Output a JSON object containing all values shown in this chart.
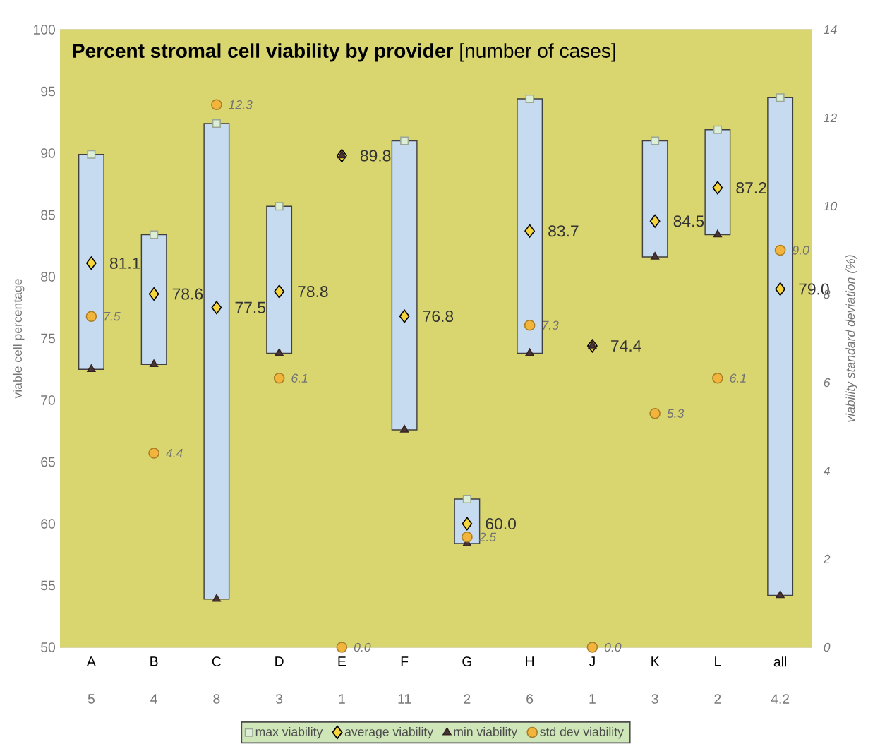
{
  "chart_data": {
    "type": "bar",
    "title": "**Percent stromal cell viability by provider** [number of cases]",
    "ylabel": "viable cell percentage",
    "y2label": "viability standard deviation (%)",
    "categories": [
      "A",
      "B",
      "C",
      "D",
      "E",
      "F",
      "G",
      "H",
      "J",
      "K",
      "L",
      "all"
    ],
    "annotations": [
      "5",
      "4",
      "8",
      "3",
      "1",
      "11",
      "2",
      "6",
      "1",
      "3",
      "2",
      "4.2"
    ],
    "ylim": [
      50,
      100
    ],
    "yticks": [
      50,
      55,
      60,
      65,
      70,
      75,
      80,
      85,
      90,
      95,
      100
    ],
    "y2lim": [
      0,
      14
    ],
    "y2ticks": [
      0,
      2,
      4,
      6,
      8,
      10,
      12,
      14
    ],
    "grid": "y",
    "legend": "bottom",
    "series": [
      {
        "color": "#c6dbf0",
        "base": [
          72.5,
          72.9,
          53.9,
          73.8,
          null,
          67.6,
          58.4,
          73.8,
          null,
          81.6,
          83.4,
          54.2
        ],
        "values": [
          17.4,
          10.5,
          38.5,
          11.9,
          null,
          23.4,
          3.6,
          20.6,
          null,
          9.4,
          8.5,
          40.3
        ]
      },
      {
        "type": "scatter",
        "name": "max viability",
        "marker": "square",
        "color": "#dcefd6",
        "values": [
          89.9,
          83.4,
          92.4,
          85.7,
          null,
          91.0,
          62.0,
          94.4,
          null,
          91.0,
          91.9,
          94.5
        ]
      },
      {
        "type": "scatter",
        "name": "average viability",
        "marker": "diamond",
        "color": "#f6d53c",
        "values": [
          81.1,
          78.6,
          77.5,
          78.8,
          89.8,
          76.8,
          60.0,
          83.7,
          74.4,
          84.5,
          87.2,
          79.0
        ],
        "value_labels": [
          "81.1",
          "78.6",
          "77.5",
          "78.8",
          "89.8",
          "76.8",
          "60.0",
          "83.7",
          "74.4",
          "84.5",
          "87.2",
          "79.0"
        ]
      },
      {
        "type": "scatter",
        "name": "min viability",
        "marker": "triangle",
        "color": "#4a3434",
        "values": [
          72.5,
          72.9,
          53.9,
          73.8,
          89.8,
          67.6,
          58.4,
          73.8,
          74.4,
          81.6,
          83.4,
          54.2
        ]
      },
      {
        "type": "scatter",
        "name": "std dev viability",
        "marker": "circle",
        "color": "#f2b43a",
        "axis": "y2",
        "values": [
          7.5,
          4.4,
          12.3,
          6.1,
          0.0,
          null,
          2.5,
          7.3,
          0.0,
          5.3,
          6.1,
          9.0
        ],
        "value_labels": [
          "7.5",
          "4.4",
          "12.3",
          "6.1",
          "0.0",
          null,
          "2.5",
          "7.3",
          "0.0",
          "5.3",
          "6.1",
          "9.0"
        ]
      }
    ]
  }
}
